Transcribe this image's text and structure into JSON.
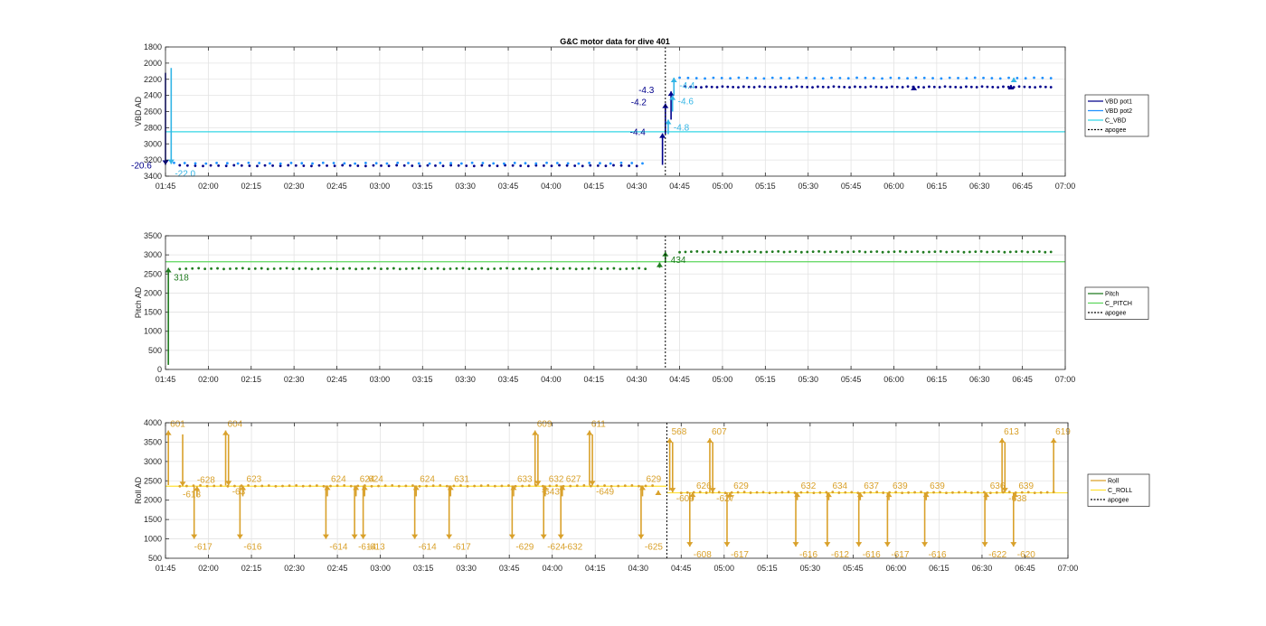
{
  "figure": {
    "title": "G&C motor data for dive 401"
  },
  "chart_data": [
    {
      "type": "line",
      "ylabel": "VBD AD",
      "ylim": [
        1800,
        3400
      ],
      "y_reversed": true,
      "yticks": [
        "1800",
        "2000",
        "2200",
        "2400",
        "2600",
        "2800",
        "3000",
        "3200",
        "3400"
      ],
      "xticks": [
        "01:45",
        "02:00",
        "02:15",
        "02:30",
        "02:45",
        "03:00",
        "03:15",
        "03:30",
        "03:45",
        "04:00",
        "04:15",
        "04:30",
        "04:45",
        "05:00",
        "05:15",
        "05:30",
        "05:45",
        "06:00",
        "06:15",
        "06:30",
        "06:45",
        "07:00"
      ],
      "xlim": [
        "01:45",
        "07:00"
      ],
      "grid": true,
      "legend": {
        "placement": "right",
        "entries": [
          {
            "label": "VBD pot1",
            "color": "#00008b",
            "style": "solid"
          },
          {
            "label": "VBD pot2",
            "color": "#1e90ff",
            "style": "solid"
          },
          {
            "label": "C_VBD",
            "color": "#33d6e6",
            "style": "solid"
          },
          {
            "label": "apogee",
            "color": "#000000",
            "style": "dotted"
          }
        ]
      },
      "reference_lines": [
        {
          "name": "C_VBD",
          "y": 2850,
          "color": "#33d6e6"
        }
      ],
      "apogee": "04:40",
      "series": [
        {
          "name": "VBD pot1",
          "color": "#00008b",
          "dots": {
            "x_start": "01:50",
            "x_end": "04:30",
            "y": 3270,
            "count": 60
          },
          "dots2": {
            "x_start": "04:47",
            "x_end": "06:55",
            "y": 2295,
            "count": 70
          }
        },
        {
          "name": "VBD pot2",
          "color": "#1e90ff",
          "dots": {
            "x_start": "01:48",
            "x_end": "04:32",
            "y": 3240,
            "count": 45
          },
          "dots2": {
            "x_start": "04:45",
            "x_end": "06:55",
            "y": 2185,
            "count": 45
          }
        }
      ],
      "arrows": [
        {
          "x": "01:45",
          "y1": 2120,
          "y2": 3260,
          "color": "#00008b",
          "label": "-20.6",
          "lx": -38,
          "ly": 4
        },
        {
          "x": "01:47",
          "y1": 2060,
          "y2": 3250,
          "color": "#33b5e6",
          "label": "-22.0",
          "lx": 4,
          "ly": 14
        },
        {
          "x": "04:39",
          "y1": 3260,
          "y2": 2870,
          "color": "#00008b",
          "label": "-4.4",
          "lx": -36,
          "ly": 2
        },
        {
          "x": "04:40",
          "y1": 2880,
          "y2": 2500,
          "color": "#00008b",
          "label": "-4.2",
          "lx": -38,
          "ly": 2
        },
        {
          "x": "04:41",
          "y1": 2880,
          "y2": 2700,
          "color": "#33b5e6",
          "label": "-4.8",
          "lx": 6,
          "ly": 12
        },
        {
          "x": "04:42",
          "y1": 2700,
          "y2": 2350,
          "color": "#00008b",
          "label": "-4.3",
          "lx": -36,
          "ly": 2
        },
        {
          "x": "04:42.5",
          "y1": 2600,
          "y2": 2400,
          "color": "#33b5e6",
          "label": "-4.6",
          "lx": 6,
          "ly": 10
        },
        {
          "x": "04:43",
          "y1": 2400,
          "y2": 2180,
          "color": "#33b5e6",
          "label": "-4.4",
          "lx": 6,
          "ly": 12
        },
        {
          "x": "06:07",
          "y1": 2300,
          "y2": 2280,
          "color": "#00008b",
          "label": "",
          "lx": 0,
          "ly": 0
        },
        {
          "x": "06:41",
          "y1": 2300,
          "y2": 2270,
          "color": "#00008b",
          "label": "",
          "lx": 0,
          "ly": 0
        },
        {
          "x": "06:42",
          "y1": 2200,
          "y2": 2180,
          "color": "#33b5e6",
          "label": "",
          "lx": 0,
          "ly": 0
        }
      ]
    },
    {
      "type": "line",
      "ylabel": "Pitch AD",
      "ylim": [
        0,
        3500
      ],
      "y_reversed": false,
      "yticks": [
        "0",
        "500",
        "1000",
        "1500",
        "2000",
        "2500",
        "3000",
        "3500"
      ],
      "xticks": [
        "01:45",
        "02:00",
        "02:15",
        "02:30",
        "02:45",
        "03:00",
        "03:15",
        "03:30",
        "03:45",
        "04:00",
        "04:15",
        "04:30",
        "04:45",
        "05:00",
        "05:15",
        "05:30",
        "05:45",
        "06:00",
        "06:15",
        "06:30",
        "06:45",
        "07:00"
      ],
      "xlim": [
        "01:45",
        "07:00"
      ],
      "grid": true,
      "legend": {
        "placement": "right",
        "entries": [
          {
            "label": "Pitch",
            "color": "#1f7a1f",
            "style": "solid"
          },
          {
            "label": "C_PITCH",
            "color": "#5cd65c",
            "style": "solid"
          },
          {
            "label": "apogee",
            "color": "#000000",
            "style": "dotted"
          }
        ]
      },
      "reference_lines": [
        {
          "name": "C_PITCH",
          "y": 2820,
          "color": "#5cd65c"
        }
      ],
      "apogee": "04:40",
      "series": [
        {
          "name": "Pitch",
          "color": "#1f7a1f",
          "dots": {
            "x_start": "01:50",
            "x_end": "04:33",
            "y": 2640,
            "count": 75
          },
          "dots2": {
            "x_start": "04:45",
            "x_end": "06:55",
            "y": 3080,
            "count": 65
          }
        }
      ],
      "arrows": [
        {
          "x": "01:46",
          "y1": 120,
          "y2": 2660,
          "color": "#1f7a1f",
          "label": "318",
          "lx": 6,
          "ly": 14
        },
        {
          "x": "04:38",
          "y1": 2660,
          "y2": 2800,
          "color": "#1f7a1f",
          "label": "",
          "lx": 0,
          "ly": 0
        },
        {
          "x": "04:40",
          "y1": 2800,
          "y2": 3080,
          "color": "#1f7a1f",
          "label": "434",
          "lx": 6,
          "ly": 12
        }
      ]
    },
    {
      "type": "line",
      "ylabel": "Roll AD",
      "ylim": [
        500,
        4000
      ],
      "y_reversed": false,
      "yticks": [
        "500",
        "1000",
        "1500",
        "2000",
        "2500",
        "3000",
        "3500",
        "4000"
      ],
      "xticks": [
        "01:45",
        "02:00",
        "02:15",
        "02:30",
        "02:45",
        "03:00",
        "03:15",
        "03:30",
        "03:45",
        "04:00",
        "04:15",
        "04:30",
        "04:45",
        "05:00",
        "05:15",
        "05:30",
        "05:45",
        "06:00",
        "06:15",
        "06:30",
        "06:45",
        "07:00"
      ],
      "xlim": [
        "01:45",
        "07:00"
      ],
      "grid": true,
      "legend": {
        "placement": "right",
        "entries": [
          {
            "label": "Roll",
            "color": "#d9a12b",
            "style": "solid"
          },
          {
            "label": "C_ROLL",
            "color": "#ffe135",
            "style": "solid"
          },
          {
            "label": "apogee",
            "color": "#000000",
            "style": "dotted"
          }
        ]
      },
      "reference_lines": [
        {
          "name": "C_ROLL",
          "y": 2360,
          "x_end": "04:40",
          "color": "#ffe135"
        },
        {
          "name": "C_ROLL",
          "y": 2190,
          "x_start": "04:40",
          "color": "#ffe135"
        }
      ],
      "apogee": "04:40",
      "series": [
        {
          "name": "Roll",
          "color": "#d9a12b",
          "dots": {
            "x_start": "01:50",
            "x_end": "04:35",
            "y": 2370,
            "count": 70
          },
          "dots2": {
            "x_start": "04:45",
            "x_end": "06:55",
            "y": 2200,
            "count": 60
          }
        }
      ],
      "arrows": [
        {
          "x": "01:46",
          "y1": 2390,
          "y2": 3800,
          "color": "#d9a12b",
          "label": "601",
          "lx": 2,
          "ly": -4
        },
        {
          "x": "01:51",
          "y1": 3700,
          "y2": 2360,
          "color": "#d9a12b",
          "label": "-613",
          "lx": 0,
          "ly": 12
        },
        {
          "x": "01:55",
          "y1": 2360,
          "y2": 1000,
          "color": "#d9a12b",
          "label": "-617",
          "lx": 0,
          "ly": 12
        },
        {
          "x": "01:56",
          "y1": 2100,
          "y2": 2360,
          "color": "#d9a12b",
          "label": "-628",
          "lx": 0,
          "ly": -4
        },
        {
          "x": "02:51",
          "y1": 2380,
          "y2": 1000,
          "color": "#d9a12b",
          "label": "-614",
          "lx": 4,
          "ly": 12
        },
        {
          "x": "02:06",
          "y1": 2380,
          "y2": 3800,
          "color": "#d9a12b",
          "label": "604",
          "lx": 2,
          "ly": -4
        },
        {
          "x": "02:07",
          "y1": 3700,
          "y2": 2380,
          "color": "#d9a12b",
          "label": "-63",
          "lx": 4,
          "ly": 10
        },
        {
          "x": "02:11",
          "y1": 2380,
          "y2": 1000,
          "color": "#d9a12b",
          "label": "-616",
          "lx": 4,
          "ly": 12
        },
        {
          "x": "02:12",
          "y1": 2100,
          "y2": 2380,
          "color": "#d9a12b",
          "label": "623",
          "lx": 4,
          "ly": -4
        },
        {
          "x": "02:51.5",
          "y1": 2100,
          "y2": 2380,
          "color": "#d9a12b",
          "label": "624",
          "lx": 4,
          "ly": -4
        },
        {
          "x": "02:41",
          "y1": 2380,
          "y2": 1000,
          "color": "#d9a12b",
          "label": "-614",
          "lx": 4,
          "ly": 12
        },
        {
          "x": "02:41.5",
          "y1": 2100,
          "y2": 2380,
          "color": "#d9a12b",
          "label": "624",
          "lx": 4,
          "ly": -4
        },
        {
          "x": "02:54",
          "y1": 2380,
          "y2": 1000,
          "color": "#d9a12b",
          "label": "-613",
          "lx": 4,
          "ly": 12
        },
        {
          "x": "02:54.5",
          "y1": 2100,
          "y2": 2380,
          "color": "#d9a12b",
          "label": "624",
          "lx": 4,
          "ly": -4
        },
        {
          "x": "03:12",
          "y1": 2380,
          "y2": 1000,
          "color": "#d9a12b",
          "label": "-614",
          "lx": 4,
          "ly": 12
        },
        {
          "x": "03:12.5",
          "y1": 2100,
          "y2": 2380,
          "color": "#d9a12b",
          "label": "624",
          "lx": 4,
          "ly": -4
        },
        {
          "x": "03:24",
          "y1": 2380,
          "y2": 1000,
          "color": "#d9a12b",
          "label": "-617",
          "lx": 4,
          "ly": 12
        },
        {
          "x": "03:24.5",
          "y1": 2100,
          "y2": 2380,
          "color": "#d9a12b",
          "label": "631",
          "lx": 4,
          "ly": -4
        },
        {
          "x": "03:46",
          "y1": 2380,
          "y2": 1000,
          "color": "#d9a12b",
          "label": "-629",
          "lx": 4,
          "ly": 12
        },
        {
          "x": "03:46.5",
          "y1": 2100,
          "y2": 2380,
          "color": "#d9a12b",
          "label": "633",
          "lx": 4,
          "ly": -4
        },
        {
          "x": "03:54",
          "y1": 2380,
          "y2": 3800,
          "color": "#d9a12b",
          "label": "609",
          "lx": 2,
          "ly": -4
        },
        {
          "x": "03:55",
          "y1": 3700,
          "y2": 2380,
          "color": "#d9a12b",
          "label": "-643",
          "lx": 4,
          "ly": 10
        },
        {
          "x": "03:57",
          "y1": 2380,
          "y2": 1000,
          "color": "#d9a12b",
          "label": "-624",
          "lx": 4,
          "ly": 12
        },
        {
          "x": "03:57.5",
          "y1": 2100,
          "y2": 2380,
          "color": "#d9a12b",
          "label": "632",
          "lx": 4,
          "ly": -4
        },
        {
          "x": "04:03",
          "y1": 2380,
          "y2": 1000,
          "color": "#d9a12b",
          "label": "-632",
          "lx": 4,
          "ly": 12
        },
        {
          "x": "04:03.5",
          "y1": 2100,
          "y2": 2380,
          "color": "#d9a12b",
          "label": "627",
          "lx": 4,
          "ly": -4
        },
        {
          "x": "04:13",
          "y1": 2380,
          "y2": 3800,
          "color": "#d9a12b",
          "label": "611",
          "lx": 2,
          "ly": -4
        },
        {
          "x": "04:14",
          "y1": 3700,
          "y2": 2380,
          "color": "#d9a12b",
          "label": "-649",
          "lx": 4,
          "ly": 10
        },
        {
          "x": "04:31",
          "y1": 2380,
          "y2": 1000,
          "color": "#d9a12b",
          "label": "-625",
          "lx": 4,
          "ly": 12
        },
        {
          "x": "04:31.5",
          "y1": 2100,
          "y2": 2380,
          "color": "#d9a12b",
          "label": "629",
          "lx": 4,
          "ly": -4
        },
        {
          "x": "04:37",
          "y1": 2200,
          "y2": 2250,
          "color": "#d9a12b",
          "label": "",
          "lx": 0,
          "ly": 0
        },
        {
          "x": "04:41",
          "y1": 2250,
          "y2": 3600,
          "color": "#d9a12b",
          "label": "568",
          "lx": 2,
          "ly": -4
        },
        {
          "x": "04:42",
          "y1": 3500,
          "y2": 2200,
          "color": "#d9a12b",
          "label": "-609",
          "lx": 4,
          "ly": 10
        },
        {
          "x": "04:48",
          "y1": 2200,
          "y2": 800,
          "color": "#d9a12b",
          "label": "-608",
          "lx": 4,
          "ly": 12
        },
        {
          "x": "04:49",
          "y1": 2000,
          "y2": 2200,
          "color": "#d9a12b",
          "label": "626",
          "lx": 4,
          "ly": -4
        },
        {
          "x": "04:55",
          "y1": 2200,
          "y2": 3600,
          "color": "#d9a12b",
          "label": "607",
          "lx": 2,
          "ly": -4
        },
        {
          "x": "04:56",
          "y1": 3500,
          "y2": 2200,
          "color": "#d9a12b",
          "label": "-627",
          "lx": 4,
          "ly": 10
        },
        {
          "x": "05:01",
          "y1": 2200,
          "y2": 800,
          "color": "#d9a12b",
          "label": "-617",
          "lx": 4,
          "ly": 12
        },
        {
          "x": "05:02",
          "y1": 2000,
          "y2": 2200,
          "color": "#d9a12b",
          "label": "629",
          "lx": 4,
          "ly": -4
        },
        {
          "x": "05:25",
          "y1": 2200,
          "y2": 800,
          "color": "#d9a12b",
          "label": "-616",
          "lx": 4,
          "ly": 12
        },
        {
          "x": "05:25.5",
          "y1": 2000,
          "y2": 2200,
          "color": "#d9a12b",
          "label": "632",
          "lx": 4,
          "ly": -4
        },
        {
          "x": "05:36",
          "y1": 2200,
          "y2": 800,
          "color": "#d9a12b",
          "label": "-612",
          "lx": 4,
          "ly": 12
        },
        {
          "x": "05:36.5",
          "y1": 2000,
          "y2": 2200,
          "color": "#d9a12b",
          "label": "634",
          "lx": 4,
          "ly": -4
        },
        {
          "x": "05:47",
          "y1": 2200,
          "y2": 800,
          "color": "#d9a12b",
          "label": "-616",
          "lx": 4,
          "ly": 12
        },
        {
          "x": "05:47.5",
          "y1": 2000,
          "y2": 2200,
          "color": "#d9a12b",
          "label": "637",
          "lx": 4,
          "ly": -4
        },
        {
          "x": "05:57",
          "y1": 2200,
          "y2": 800,
          "color": "#d9a12b",
          "label": "-617",
          "lx": 4,
          "ly": 12
        },
        {
          "x": "05:57.5",
          "y1": 2000,
          "y2": 2200,
          "color": "#d9a12b",
          "label": "639",
          "lx": 4,
          "ly": -4
        },
        {
          "x": "06:10",
          "y1": 2200,
          "y2": 800,
          "color": "#d9a12b",
          "label": "-616",
          "lx": 4,
          "ly": 12
        },
        {
          "x": "06:10.5",
          "y1": 2000,
          "y2": 2200,
          "color": "#d9a12b",
          "label": "639",
          "lx": 4,
          "ly": -4
        },
        {
          "x": "06:31",
          "y1": 2200,
          "y2": 800,
          "color": "#d9a12b",
          "label": "-622",
          "lx": 4,
          "ly": 12
        },
        {
          "x": "06:31.5",
          "y1": 2000,
          "y2": 2200,
          "color": "#d9a12b",
          "label": "636",
          "lx": 4,
          "ly": -4
        },
        {
          "x": "06:37",
          "y1": 2200,
          "y2": 3600,
          "color": "#d9a12b",
          "label": "613",
          "lx": 2,
          "ly": -4
        },
        {
          "x": "06:38",
          "y1": 3500,
          "y2": 2200,
          "color": "#d9a12b",
          "label": "-638",
          "lx": 4,
          "ly": 10
        },
        {
          "x": "06:41",
          "y1": 2200,
          "y2": 800,
          "color": "#d9a12b",
          "label": "-620",
          "lx": 4,
          "ly": 12
        },
        {
          "x": "06:41.5",
          "y1": 2000,
          "y2": 2200,
          "color": "#d9a12b",
          "label": "639",
          "lx": 4,
          "ly": -4
        },
        {
          "x": "06:55",
          "y1": 2200,
          "y2": 3600,
          "color": "#d9a12b",
          "label": "619",
          "lx": 2,
          "ly": -4
        }
      ]
    }
  ]
}
